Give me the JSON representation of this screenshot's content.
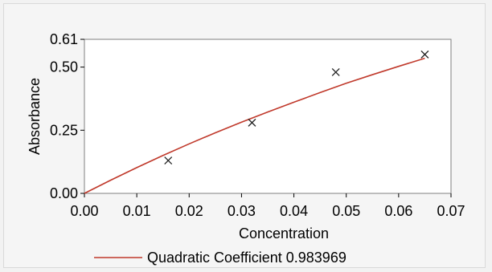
{
  "chart_data": {
    "type": "scatter",
    "xlabel": "Concentration",
    "ylabel": "Absorbance",
    "xlim": [
      0.0,
      0.07
    ],
    "ylim": [
      0.0,
      0.61
    ],
    "x_ticks": [
      "0.00",
      "0.01",
      "0.02",
      "0.03",
      "0.04",
      "0.05",
      "0.06",
      "0.07"
    ],
    "x_tick_values": [
      0.0,
      0.01,
      0.02,
      0.03,
      0.04,
      0.05,
      0.06,
      0.07
    ],
    "y_ticks": [
      "0.00",
      "0.25",
      "0.50",
      "0.61"
    ],
    "y_tick_values": [
      0.0,
      0.25,
      0.5,
      0.61
    ],
    "grid": false,
    "legend_position": "bottom",
    "series": [
      {
        "name": "Quadratic Coefficient 0.983969",
        "kind": "fit-line",
        "color": "#c0392b",
        "x": [
          0.0,
          0.005,
          0.01,
          0.015,
          0.02,
          0.025,
          0.03,
          0.035,
          0.04,
          0.045,
          0.05,
          0.055,
          0.06,
          0.065
        ],
        "y": [
          0.0,
          0.052,
          0.102,
          0.15,
          0.196,
          0.24,
          0.282,
          0.322,
          0.361,
          0.399,
          0.436,
          0.47,
          0.503,
          0.535
        ]
      },
      {
        "kind": "markers",
        "marker": "x",
        "color": "#222222",
        "x": [
          0.016,
          0.032,
          0.048,
          0.065
        ],
        "y": [
          0.13,
          0.28,
          0.48,
          0.55
        ]
      }
    ]
  }
}
